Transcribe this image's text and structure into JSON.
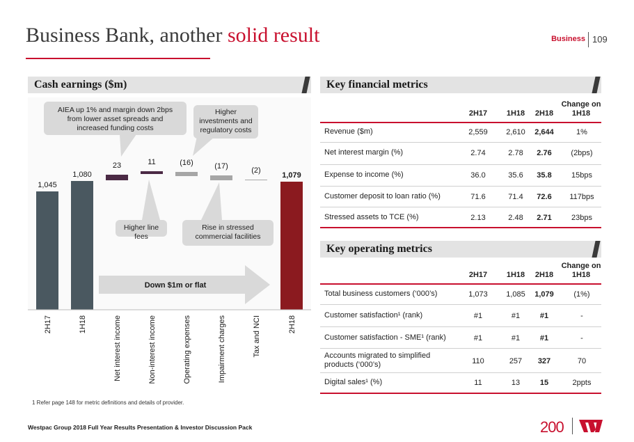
{
  "header": {
    "title_main": "Business Bank, another ",
    "title_highlight": "solid result",
    "section": "Business",
    "page_number": "109"
  },
  "colors": {
    "accent": "#c8102e",
    "dark_bar": "#4a5860",
    "purple_bar": "#4b2a45",
    "grey_bar": "#a6a6a6",
    "red_bar": "#8b1a1f"
  },
  "cash_panel": {
    "title": "Cash earnings ($m)"
  },
  "chart_data": {
    "type": "bar",
    "subtype": "waterfall",
    "categories": [
      "2H17",
      "1H18",
      "Net interest income",
      "Non-interest income",
      "Operating expenses",
      "Impairment charges",
      "Tax and NCI",
      "2H18"
    ],
    "values": [
      1045,
      1080,
      23,
      11,
      -16,
      -17,
      -2,
      1079
    ],
    "value_labels": [
      "1,045",
      "1,080",
      "23",
      "11",
      "(16)",
      "(17)",
      "(2)",
      "1,079"
    ],
    "bar_kinds": [
      "total",
      "total",
      "increase",
      "increase",
      "decrease",
      "decrease",
      "decrease",
      "total"
    ],
    "arrow_label": "Down $1m or flat"
  },
  "callouts": {
    "aiea": "AIEA up 1% and margin down 2bps from lower asset spreads and increased funding costs",
    "investments": "Higher investments and regulatory costs",
    "line_fees": "Higher line fees",
    "stressed": "Rise in stressed commercial facilities"
  },
  "financial_panel": {
    "title": "Key financial metrics",
    "columns": [
      "2H17",
      "1H18",
      "2H18",
      "Change on 1H18"
    ],
    "rows": [
      {
        "label": "Revenue ($m)",
        "v1": "2,559",
        "v2": "2,610",
        "v3": "2,644",
        "change": "1%"
      },
      {
        "label": "Net interest margin (%)",
        "v1": "2.74",
        "v2": "2.78",
        "v3": "2.76",
        "change": "(2bps)"
      },
      {
        "label": "Expense to income (%)",
        "v1": "36.0",
        "v2": "35.6",
        "v3": "35.8",
        "change": "15bps"
      },
      {
        "label": "Customer deposit to loan ratio (%)",
        "v1": "71.6",
        "v2": "71.4",
        "v3": "72.6",
        "change": "117bps"
      },
      {
        "label": "Stressed assets to TCE (%)",
        "v1": "2.13",
        "v2": "2.48",
        "v3": "2.71",
        "change": "23bps"
      }
    ]
  },
  "operating_panel": {
    "title": "Key operating metrics",
    "columns": [
      "2H17",
      "1H18",
      "2H18",
      "Change on 1H18"
    ],
    "rows": [
      {
        "label": "Total business customers (‘000’s)",
        "v1": "1,073",
        "v2": "1,085",
        "v3": "1,079",
        "change": "(1%)"
      },
      {
        "label": "Customer satisfaction¹ (rank)",
        "v1": "#1",
        "v2": "#1",
        "v3": "#1",
        "change": "-"
      },
      {
        "label": "Customer satisfaction - SME¹ (rank)",
        "v1": "#1",
        "v2": "#1",
        "v3": "#1",
        "change": "-"
      },
      {
        "label": "Accounts migrated to simplified products (‘000’s)",
        "v1": "110",
        "v2": "257",
        "v3": "327",
        "change": "70"
      },
      {
        "label": "Digital sales¹ (%)",
        "v1": "11",
        "v2": "13",
        "v3": "15",
        "change": "2ppts"
      }
    ]
  },
  "footnote": "1 Refer page 148 for metric definitions and details of provider.",
  "footer": "Westpac Group 2018 Full Year Results Presentation & Investor Discussion Pack",
  "logo": {
    "anniversary": "200"
  }
}
